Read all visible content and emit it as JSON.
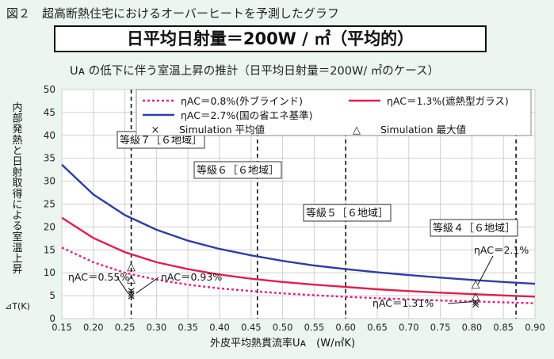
{
  "header": "図２　超高断熱住宅におけるオーバーヒートを予測したグラフ",
  "boxed_title": "日平均日射量＝200W / ㎡（平均的）",
  "subtitle": "Uᴀ の低下に伴う室温上昇の推計（日平均日射量＝200W/ ㎡のケース）",
  "chart_data": {
    "type": "line",
    "xlabel": "外皮平均熱貫流率Uᴀ　(W/㎡K)",
    "ylabel": "内部発熱と日射取得による室温上昇",
    "ylabel_unit": "⊿T(K)",
    "xlim": [
      0.15,
      0.9
    ],
    "ylim": [
      0,
      50
    ],
    "x_ticks": [
      "0.15",
      "0.20",
      "0.25",
      "0.30",
      "0.35",
      "0.40",
      "0.45",
      "0.50",
      "0.55",
      "0.60",
      "0.65",
      "0.70",
      "0.75",
      "0.80",
      "0.85",
      "0.90"
    ],
    "y_ticks": [
      "0",
      "5",
      "10",
      "15",
      "20",
      "25",
      "30",
      "35",
      "40",
      "45",
      "50"
    ],
    "grid": true,
    "legend_position": "top-right",
    "x": [
      0.15,
      0.2,
      0.25,
      0.3,
      0.35,
      0.4,
      0.45,
      0.5,
      0.55,
      0.6,
      0.65,
      0.7,
      0.75,
      0.8,
      0.85,
      0.9
    ],
    "series": [
      {
        "name": "ηAC＝0.8%(外ブラインド)",
        "color": "#e0208a",
        "style": "dotted",
        "values": [
          15.5,
          12.3,
          10.0,
          8.5,
          7.4,
          6.6,
          6.0,
          5.5,
          5.1,
          4.75,
          4.45,
          4.2,
          3.95,
          3.75,
          3.55,
          3.35
        ]
      },
      {
        "name": "ηAC＝1.3%(遮熱型ガラス)",
        "color": "#e0204c",
        "style": "solid",
        "values": [
          22.0,
          17.6,
          14.5,
          12.3,
          10.8,
          9.6,
          8.7,
          8.0,
          7.4,
          6.9,
          6.4,
          6.0,
          5.65,
          5.35,
          5.05,
          4.8
        ]
      },
      {
        "name": "ηAC＝2.7%(国の省エネ基準)",
        "color": "#2e3ea6",
        "style": "solid",
        "values": [
          33.6,
          27.1,
          22.6,
          19.4,
          17.0,
          15.2,
          13.8,
          12.6,
          11.6,
          10.8,
          10.1,
          9.5,
          8.95,
          8.45,
          8.0,
          7.6
        ]
      }
    ],
    "markers": [
      {
        "name": "Simulation 平均値",
        "symbol": "×",
        "points": [
          [
            0.26,
            6.1
          ],
          [
            0.26,
            5.5
          ],
          [
            0.26,
            5.0
          ],
          [
            0.806,
            3.7
          ],
          [
            0.806,
            3.2
          ]
        ]
      },
      {
        "name": "Simulation 最大値",
        "symbol": "△",
        "points": [
          [
            0.26,
            11.5
          ],
          [
            0.26,
            8.8
          ],
          [
            0.806,
            7.7
          ],
          [
            0.806,
            5.0
          ]
        ]
      }
    ],
    "grade_lines": [
      {
        "x": 0.26,
        "label": "等級７［６地域］"
      },
      {
        "x": 0.46,
        "label": "等級６［６地域］"
      },
      {
        "x": 0.6,
        "label": "等級５［６地域］"
      },
      {
        "x": 0.87,
        "label": "等級４［６地域］"
      }
    ],
    "annotations": [
      "ηAC＝0.55%",
      "ηAC＝0.93%",
      "ηAC＝2.1%",
      "ηAC＝1.31%"
    ]
  }
}
